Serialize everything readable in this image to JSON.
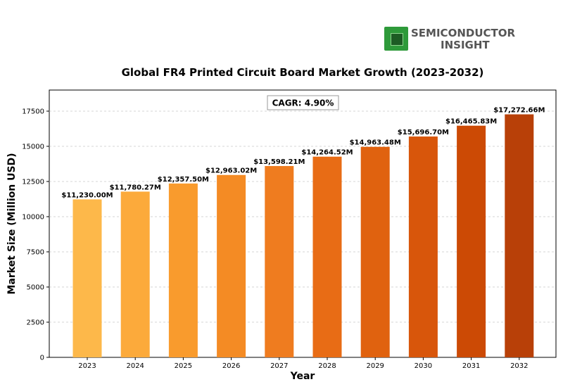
{
  "logo": {
    "line1": "SEMICONDUCTOR",
    "line2": "INSIGHT"
  },
  "chart_data": {
    "type": "bar",
    "title": "Global FR4 Printed Circuit Board Market Growth (2023-2032)",
    "xlabel": "Year",
    "ylabel": "Market Size (Million USD)",
    "categories": [
      "2023",
      "2024",
      "2025",
      "2026",
      "2027",
      "2028",
      "2029",
      "2030",
      "2031",
      "2032"
    ],
    "values": [
      11230.0,
      11780.27,
      12357.5,
      12963.02,
      13598.21,
      14264.52,
      14963.48,
      15696.7,
      16465.83,
      17272.66
    ],
    "value_labels": [
      "$11,230.00M",
      "$11,780.27M",
      "$12,357.50M",
      "$12,963.02M",
      "$13,598.21M",
      "$14,264.52M",
      "$14,963.48M",
      "$15,696.70M",
      "$16,465.83M",
      "$17,272.66M"
    ],
    "colors": [
      "#fdb84a",
      "#fcaa3b",
      "#f99b2d",
      "#f48b24",
      "#ef7c1f",
      "#e86c15",
      "#e0620f",
      "#d8560b",
      "#cc4a05",
      "#b84008"
    ],
    "ylim": [
      0,
      19000
    ],
    "yticks": [
      0,
      2500,
      5000,
      7500,
      10000,
      12500,
      15000,
      17500
    ],
    "ytick_labels": [
      "0",
      "2500",
      "5000",
      "7500",
      "10000",
      "12500",
      "15000",
      "17500"
    ],
    "grid": true,
    "annotation": "CAGR: 4.90%"
  }
}
